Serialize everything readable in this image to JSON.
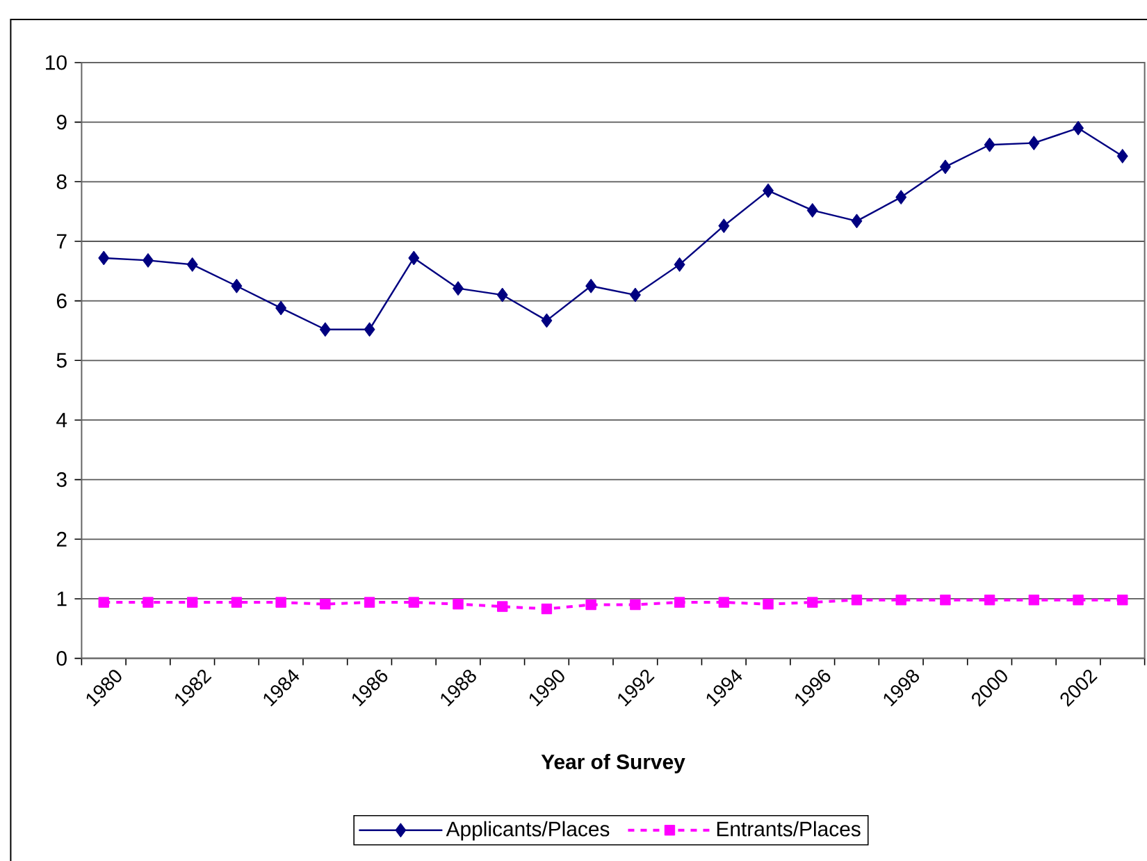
{
  "chart_data": {
    "type": "line",
    "xlabel": "Year of Survey",
    "categories": [
      "1980",
      null,
      "1982",
      null,
      "1984",
      null,
      "1986",
      null,
      "1988",
      null,
      "1990",
      null,
      "1992",
      null,
      "1994",
      null,
      "1996",
      null,
      "1998",
      null,
      "2000",
      null,
      "2002",
      null
    ],
    "series": [
      {
        "name": "Applicants/Places",
        "color": "#000080",
        "marker": "diamond",
        "line_style": "solid",
        "values": [
          6.72,
          6.68,
          6.61,
          6.25,
          5.88,
          5.52,
          5.52,
          6.72,
          6.21,
          6.1,
          5.67,
          6.25,
          6.1,
          6.61,
          7.26,
          7.85,
          7.52,
          7.34,
          7.74,
          8.25,
          8.62,
          8.65,
          8.9,
          8.43
        ]
      },
      {
        "name": "Entrants/Places",
        "color": "#ff00ff",
        "marker": "square",
        "line_style": "dashed",
        "values": [
          0.94,
          0.94,
          0.94,
          0.94,
          0.94,
          0.91,
          0.94,
          0.94,
          0.91,
          0.87,
          0.83,
          0.9,
          0.9,
          0.94,
          0.94,
          0.91,
          0.94,
          0.98,
          0.98,
          0.98,
          0.98,
          0.98,
          0.98,
          0.98
        ]
      }
    ],
    "ylim": [
      0,
      10
    ],
    "yticks": [
      0,
      1,
      2,
      3,
      4,
      5,
      6,
      7,
      8,
      9,
      10
    ],
    "grid": "y",
    "legend": "bottom"
  }
}
